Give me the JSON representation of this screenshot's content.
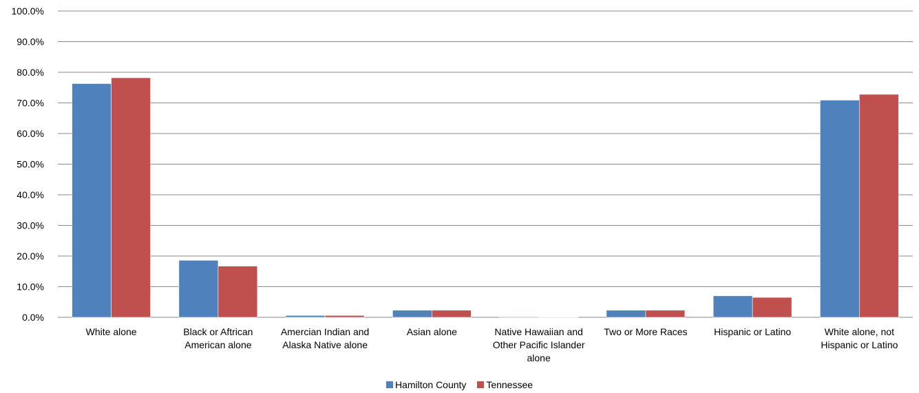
{
  "chart_data": {
    "type": "bar",
    "title": "",
    "xlabel": "",
    "ylabel": "",
    "ylim": [
      0,
      100
    ],
    "y_ticks": [
      "0.0%",
      "10.0%",
      "20.0%",
      "30.0%",
      "40.0%",
      "50.0%",
      "60.0%",
      "70.0%",
      "80.0%",
      "90.0%",
      "100.0%"
    ],
    "grid": true,
    "legend_position": "bottom",
    "categories": [
      [
        "White alone"
      ],
      [
        "Black or Aftrican",
        "American alone"
      ],
      [
        "Amercian Indian and",
        "Alaska Native alone"
      ],
      [
        "Asian alone"
      ],
      [
        "Native Hawaiian and",
        "Other Pacific Islander",
        "alone"
      ],
      [
        "Two or More Races"
      ],
      [
        "Hispanic or Latino"
      ],
      [
        "White alone, not",
        "Hispanic or Latino"
      ]
    ],
    "series": [
      {
        "name": "Hamilton County",
        "color": "#4F81BD",
        "values": [
          76.3,
          18.6,
          0.6,
          2.3,
          0.2,
          2.3,
          7.0,
          70.9
        ]
      },
      {
        "name": "Tennessee",
        "color": "#C0504D",
        "values": [
          78.2,
          16.7,
          0.6,
          2.3,
          0.1,
          2.3,
          6.5,
          72.8
        ]
      }
    ]
  }
}
